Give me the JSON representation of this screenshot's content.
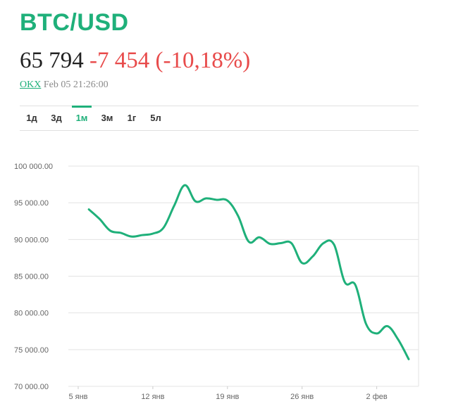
{
  "ticker": "BTC/USD",
  "quote": {
    "price": "65 794",
    "change": "-7 454",
    "change_pct": "(-10,18%)"
  },
  "meta": {
    "exchange": "OKX",
    "timestamp": "Feb 05 21:26:00"
  },
  "tabs": [
    {
      "label": "1д",
      "active": false
    },
    {
      "label": "3д",
      "active": false
    },
    {
      "label": "1м",
      "active": true
    },
    {
      "label": "3м",
      "active": false
    },
    {
      "label": "1г",
      "active": false
    },
    {
      "label": "5л",
      "active": false
    }
  ],
  "colors": {
    "accent": "#1fb07a",
    "negative": "#e84b4b",
    "line": "#1fb07a",
    "grid": "#e3e3e3"
  },
  "chart_data": {
    "type": "line",
    "title": "",
    "xlabel": "",
    "ylabel": "",
    "ylim": [
      70000,
      100000
    ],
    "xlim": [
      "2025-01-05",
      "2025-02-05"
    ],
    "y_ticks": [
      100000,
      95000,
      90000,
      85000,
      80000,
      75000,
      70000
    ],
    "y_tick_labels": [
      "100 000.00",
      "95 000.00",
      "90 000.00",
      "85 000.00",
      "80 000.00",
      "75 000.00",
      "70 000.00"
    ],
    "x_ticks": [
      "2025-01-05",
      "2025-01-12",
      "2025-01-19",
      "2025-01-26",
      "2025-02-02"
    ],
    "x_tick_labels": [
      "5 янв",
      "12 янв",
      "19 янв",
      "26 янв",
      "2 фев"
    ],
    "grid": true,
    "legend": "none",
    "series": [
      {
        "points": [
          [
            "2025-01-06",
            94100
          ],
          [
            "2025-01-07",
            92800
          ],
          [
            "2025-01-08",
            91200
          ],
          [
            "2025-01-09",
            90900
          ],
          [
            "2025-01-10",
            90400
          ],
          [
            "2025-01-11",
            90600
          ],
          [
            "2025-01-12",
            90800
          ],
          [
            "2025-01-13",
            91600
          ],
          [
            "2025-01-14",
            94600
          ],
          [
            "2025-01-15",
            97400
          ],
          [
            "2025-01-16",
            95200
          ],
          [
            "2025-01-17",
            95600
          ],
          [
            "2025-01-18",
            95400
          ],
          [
            "2025-01-19",
            95300
          ],
          [
            "2025-01-20",
            93200
          ],
          [
            "2025-01-21",
            89700
          ],
          [
            "2025-01-22",
            90300
          ],
          [
            "2025-01-23",
            89400
          ],
          [
            "2025-01-24",
            89500
          ],
          [
            "2025-01-25",
            89500
          ],
          [
            "2025-01-26",
            86800
          ],
          [
            "2025-01-27",
            87700
          ],
          [
            "2025-01-28",
            89500
          ],
          [
            "2025-01-29",
            89300
          ],
          [
            "2025-01-30",
            84200
          ],
          [
            "2025-01-31",
            83800
          ],
          [
            "2025-02-01",
            78500
          ],
          [
            "2025-02-02",
            77200
          ],
          [
            "2025-02-03",
            78200
          ],
          [
            "2025-02-04",
            76400
          ],
          [
            "2025-02-05",
            73700
          ]
        ]
      }
    ]
  }
}
